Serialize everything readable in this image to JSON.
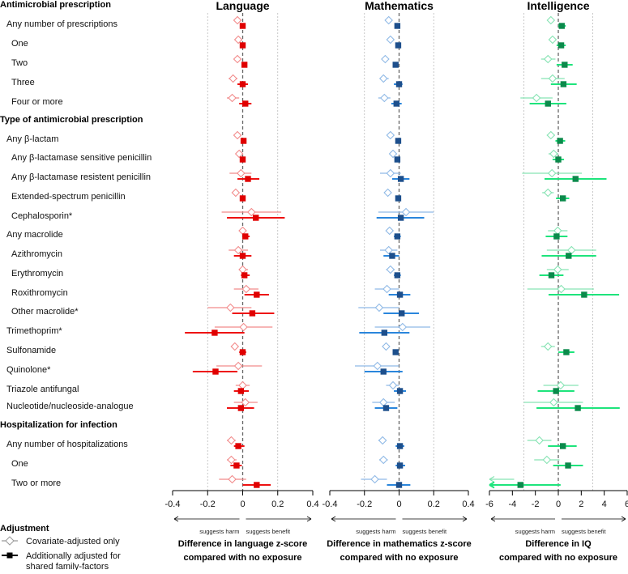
{
  "chart_data": {
    "type": "forest",
    "rows": [
      {
        "label": "Antimicrobial prescription",
        "level": 0
      },
      {
        "label": "Any number of prescriptions",
        "level": 1
      },
      {
        "label": "One",
        "level": 2
      },
      {
        "label": "Two",
        "level": 2
      },
      {
        "label": "Three",
        "level": 2
      },
      {
        "label": "Four or more",
        "level": 2
      },
      {
        "label": "Type of antimicrobial prescription",
        "level": 0
      },
      {
        "label": "Any β-lactam",
        "level": 1
      },
      {
        "label": "Any β-lactamase sensitive penicillin",
        "level": 2
      },
      {
        "label": "Any β-lactamase resistent penicillin",
        "level": 2
      },
      {
        "label": "Extended-spectrum penicillin",
        "level": 2
      },
      {
        "label": "Cephalosporin*",
        "level": 2
      },
      {
        "label": "Any macrolide",
        "level": 1
      },
      {
        "label": "Azithromycin",
        "level": 2
      },
      {
        "label": "Erythromycin",
        "level": 2
      },
      {
        "label": "Roxithromycin",
        "level": 2
      },
      {
        "label": "Other macrolide*",
        "level": 2
      },
      {
        "label": "Trimethoprim*",
        "level": 1
      },
      {
        "label": "Sulfonamide",
        "level": 1
      },
      {
        "label": "Quinolone*",
        "level": 1
      },
      {
        "label": "Triazole antifungal",
        "level": 1
      },
      {
        "label": "Nucleotide/nucleoside-analogue",
        "level": 1
      },
      {
        "label": "Hospitalization for infection",
        "level": 0
      },
      {
        "label": "Any number of hospitalizations",
        "level": 1
      },
      {
        "label": "One",
        "level": 2
      },
      {
        "label": "Two or more",
        "level": 2
      }
    ],
    "value_format": "[covariate_est, covariate_lo, covariate_hi, family_est, family_lo, family_hi]",
    "panels": [
      {
        "title": "Language",
        "xlabel_line1": "Difference in language z-score",
        "xlabel_line2": "compared with no exposure",
        "xlim": [
          -0.4,
          0.4
        ],
        "ticks": [
          "-0.4",
          "-0.2",
          "0",
          "0.2",
          "0.4"
        ],
        "tick_values": [
          -0.4,
          -0.2,
          0,
          0.2,
          0.4
        ],
        "gridlines": [
          -0.2,
          0.2
        ],
        "harm_label": "suggests harm",
        "benefit_label": "suggests benefit",
        "colors": {
          "covariate": "#f28b8b",
          "family_point": "#e00000",
          "family_line": "#ee1111"
        },
        "values": {
          "1": [
            -0.03,
            -0.04,
            -0.02,
            0,
            -0.01,
            0.01
          ],
          "2": [
            -0.025,
            -0.035,
            -0.015,
            0,
            -0.01,
            0.01
          ],
          "3": [
            -0.03,
            -0.04,
            -0.02,
            0.01,
            -0.005,
            0.025
          ],
          "4": [
            -0.055,
            -0.08,
            -0.03,
            0,
            -0.03,
            0.03
          ],
          "5": [
            -0.06,
            -0.09,
            -0.02,
            0.015,
            -0.02,
            0.05
          ],
          "7": [
            -0.03,
            -0.04,
            -0.02,
            0.005,
            -0.005,
            0.015
          ],
          "8": [
            -0.02,
            -0.03,
            -0.01,
            0,
            -0.01,
            0.01
          ],
          "9": [
            -0.01,
            -0.075,
            0.05,
            0.03,
            -0.03,
            0.095
          ],
          "10": [
            -0.04,
            -0.05,
            -0.03,
            0,
            -0.01,
            0.01
          ],
          "11": [
            0.05,
            -0.12,
            0.22,
            0.075,
            -0.09,
            0.24
          ],
          "12": [
            0,
            -0.01,
            0.01,
            0.015,
            0,
            0.04
          ],
          "13": [
            -0.025,
            -0.08,
            0.03,
            0,
            -0.05,
            0.05
          ],
          "14": [
            0,
            -0.02,
            0.03,
            0.01,
            -0.01,
            0.04
          ],
          "15": [
            0.02,
            -0.05,
            0.09,
            0.08,
            0.01,
            0.15
          ],
          "16": [
            -0.07,
            -0.2,
            0.05,
            0.055,
            -0.06,
            0.18
          ],
          "17": [
            0.005,
            -0.16,
            0.17,
            -0.16,
            -0.33,
            0.01
          ],
          "18": [
            -0.045,
            -0.055,
            -0.035,
            0,
            -0.02,
            0.02
          ],
          "19": [
            -0.025,
            -0.15,
            0.11,
            -0.155,
            -0.285,
            -0.03
          ],
          "20": [
            0,
            -0.04,
            0.04,
            -0.01,
            -0.05,
            0.035
          ],
          "21": [
            0.015,
            -0.05,
            0.085,
            -0.01,
            -0.09,
            0.065
          ],
          "23": [
            -0.065,
            -0.09,
            -0.04,
            -0.025,
            -0.05,
            0.01
          ],
          "24": [
            -0.065,
            -0.09,
            -0.035,
            -0.035,
            -0.07,
            -0.005
          ],
          "25": [
            -0.06,
            -0.135,
            0.02,
            0.08,
            0,
            0.16
          ]
        }
      },
      {
        "title": "Mathematics",
        "xlabel_line1": "Difference in mathematics z-score",
        "xlabel_line2": "compared with no exposure",
        "xlim": [
          -0.4,
          0.4
        ],
        "ticks": [
          "-0.4",
          "-0.2",
          "0",
          "0.2",
          "0.4"
        ],
        "tick_values": [
          -0.4,
          -0.2,
          0,
          0.2,
          0.4
        ],
        "gridlines": [
          -0.2,
          0.2
        ],
        "harm_label": "suggests harm",
        "benefit_label": "suggests benefit",
        "colors": {
          "covariate": "#8fb9e6",
          "family_point": "#1d4f8c",
          "family_line": "#2a86dc"
        },
        "values": {
          "1": [
            -0.06,
            -0.07,
            -0.05,
            -0.01,
            -0.02,
            0
          ],
          "2": [
            -0.05,
            -0.06,
            -0.04,
            -0.005,
            -0.015,
            0.005
          ],
          "3": [
            -0.08,
            -0.09,
            -0.07,
            -0.02,
            -0.03,
            -0.01
          ],
          "4": [
            -0.09,
            -0.11,
            -0.06,
            0,
            -0.03,
            0.02
          ],
          "5": [
            -0.085,
            -0.12,
            -0.05,
            -0.015,
            -0.045,
            0.015
          ],
          "7": [
            -0.05,
            -0.06,
            -0.04,
            -0.005,
            -0.015,
            0.005
          ],
          "8": [
            -0.035,
            -0.045,
            -0.025,
            -0.01,
            -0.02,
            0
          ],
          "9": [
            -0.05,
            -0.11,
            0.01,
            0.01,
            -0.04,
            0.06
          ],
          "10": [
            -0.065,
            -0.075,
            -0.055,
            -0.005,
            -0.015,
            0.005
          ],
          "11": [
            0.04,
            -0.12,
            0.2,
            0.01,
            -0.13,
            0.145
          ],
          "12": [
            -0.055,
            -0.065,
            -0.045,
            -0.01,
            -0.03,
            0.01
          ],
          "13": [
            -0.06,
            -0.11,
            -0.01,
            -0.04,
            -0.09,
            0
          ],
          "14": [
            -0.05,
            -0.075,
            -0.025,
            -0.01,
            -0.03,
            0.01
          ],
          "15": [
            -0.07,
            -0.14,
            0,
            0.005,
            -0.06,
            0.065
          ],
          "16": [
            -0.115,
            -0.235,
            0,
            0.015,
            -0.09,
            0.115
          ],
          "17": [
            0.02,
            -0.14,
            0.18,
            -0.085,
            -0.23,
            0.06
          ],
          "18": [
            -0.075,
            -0.085,
            -0.065,
            -0.02,
            -0.03,
            -0.01
          ],
          "19": [
            -0.125,
            -0.255,
            0,
            -0.09,
            -0.2,
            0.02
          ],
          "20": [
            -0.035,
            -0.075,
            0,
            0.005,
            -0.03,
            0.04
          ],
          "21": [
            -0.09,
            -0.155,
            -0.025,
            -0.075,
            -0.14,
            -0.01
          ],
          "23": [
            -0.095,
            -0.12,
            -0.075,
            0.005,
            -0.02,
            0.03
          ],
          "24": [
            -0.09,
            -0.115,
            -0.065,
            0.005,
            -0.02,
            0.035
          ],
          "25": [
            -0.14,
            -0.22,
            -0.07,
            0,
            -0.07,
            0.065
          ]
        }
      },
      {
        "title": "Intelligence",
        "xlabel_line1": "Difference in IQ",
        "xlabel_line2": "compared with no exposure",
        "xlim": [
          -6,
          6
        ],
        "ticks": [
          "-6",
          "-4",
          "-2",
          "0",
          "2",
          "4",
          "6"
        ],
        "tick_values": [
          -6,
          -4,
          -2,
          0,
          2,
          4,
          6
        ],
        "gridlines": [
          -3,
          3
        ],
        "harm_label": "suggests harm",
        "benefit_label": "suggests benefit",
        "colors": {
          "covariate": "#86e3b3",
          "family_point": "#0b8a4b",
          "family_line": "#1ee47c"
        },
        "values": {
          "1": [
            -0.65,
            -0.9,
            -0.4,
            0.3,
            0,
            0.65
          ],
          "2": [
            -0.5,
            -0.8,
            -0.2,
            0.25,
            -0.15,
            0.65
          ],
          "3": [
            -0.9,
            -1.5,
            -0.25,
            0.55,
            -0.15,
            1.25
          ],
          "4": [
            -0.5,
            -1.5,
            0.55,
            0.45,
            -0.65,
            1.6
          ],
          "5": [
            -1.9,
            -3.3,
            -0.5,
            -0.9,
            -2.5,
            0.7
          ],
          "7": [
            -0.65,
            -1,
            -0.3,
            0.15,
            -0.25,
            0.6
          ],
          "8": [
            -0.4,
            -0.85,
            0,
            0,
            -0.5,
            0.5
          ],
          "9": [
            -0.55,
            -3.15,
            2.05,
            1.5,
            -1.2,
            4.2
          ],
          "10": [
            -0.9,
            -1.4,
            -0.4,
            0.4,
            -0.2,
            0.95
          ],
          "12": [
            -0.05,
            -0.9,
            0.8,
            -0.15,
            -1.1,
            0.8
          ],
          "13": [
            1.15,
            -1,
            3.3,
            0.9,
            -1.45,
            3.3
          ],
          "14": [
            -0.05,
            -1,
            0.9,
            -0.6,
            -1.65,
            0.45
          ],
          "15": [
            0.25,
            -2.7,
            3.1,
            2.25,
            -0.85,
            5.3
          ],
          "18": [
            -0.9,
            -1.5,
            -0.3,
            0.7,
            0,
            1.4
          ],
          "20": [
            0.2,
            -1.3,
            1.75,
            -0.2,
            -1.8,
            1.4
          ],
          "21": [
            -0.4,
            -3,
            2.15,
            1.7,
            -1.9,
            5.35
          ],
          "23": [
            -1.65,
            -2.7,
            -0.6,
            0.4,
            -0.9,
            1.6
          ],
          "24": [
            -1,
            -2.1,
            0.1,
            0.85,
            -0.45,
            2.15
          ],
          "25": [
            null,
            -7,
            -3.85,
            -3.3,
            -7,
            0.2
          ]
        }
      }
    ],
    "legend": {
      "title": "Adjustment",
      "covariate_label": "Covariate-adjusted only",
      "family_label_line1": "Additionally adjusted for",
      "family_label_line2": "shared family-factors"
    }
  }
}
